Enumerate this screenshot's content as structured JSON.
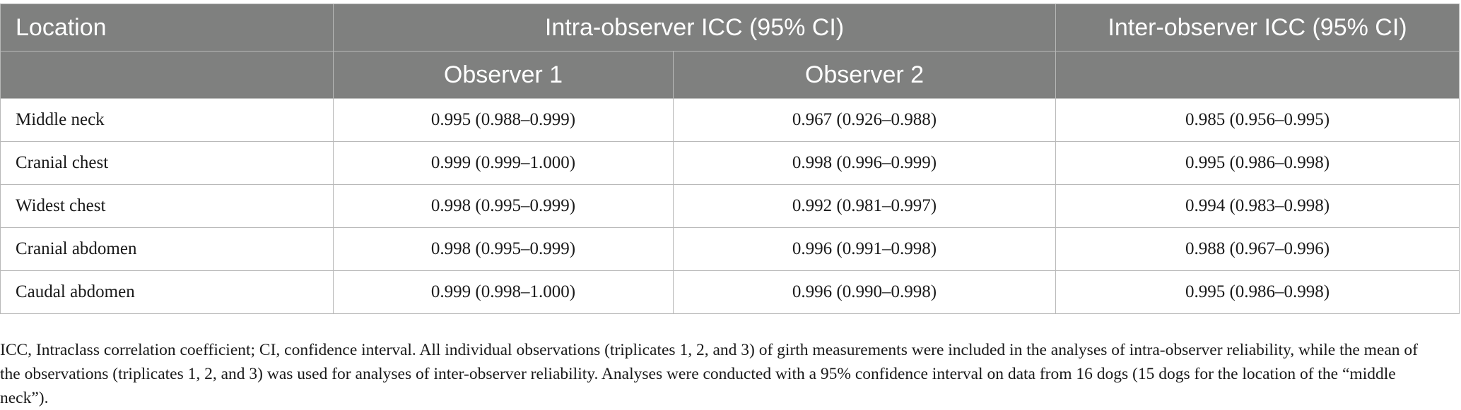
{
  "table": {
    "header_row1": {
      "location": "Location",
      "intra": "Intra-observer ICC (95% CI)",
      "inter": "Inter-observer ICC (95% CI)"
    },
    "header_row2": {
      "observer1": "Observer 1",
      "observer2": "Observer 2"
    },
    "rows": [
      {
        "location": "Middle neck",
        "obs1": "0.995 (0.988–0.999)",
        "obs2": "0.967 (0.926–0.988)",
        "inter": "0.985 (0.956–0.995)"
      },
      {
        "location": "Cranial chest",
        "obs1": "0.999 (0.999–1.000)",
        "obs2": "0.998 (0.996–0.999)",
        "inter": "0.995 (0.986–0.998)"
      },
      {
        "location": "Widest chest",
        "obs1": "0.998 (0.995–0.999)",
        "obs2": "0.992 (0.981–0.997)",
        "inter": "0.994 (0.983–0.998)"
      },
      {
        "location": "Cranial abdomen",
        "obs1": "0.998 (0.995–0.999)",
        "obs2": "0.996 (0.991–0.998)",
        "inter": "0.988 (0.967–0.996)"
      },
      {
        "location": "Caudal abdomen",
        "obs1": "0.999 (0.998–1.000)",
        "obs2": "0.996 (0.990–0.998)",
        "inter": "0.995 (0.986–0.998)"
      }
    ]
  },
  "footnote": "ICC, Intraclass correlation coefficient; CI, confidence interval. All individual observations (triplicates 1, 2, and 3) of girth measurements were included in the analyses of intra-observer reliability, while the mean of the observations (triplicates 1, 2, and 3) was used for analyses of inter-observer reliability. Analyses were conducted with a 95% confidence interval on data from 16 dogs (15 dogs for the location of the “middle neck”).",
  "colors": {
    "header_bg": "#7f807f",
    "header_text": "#ffffff",
    "grid": "#b9b9b9"
  }
}
